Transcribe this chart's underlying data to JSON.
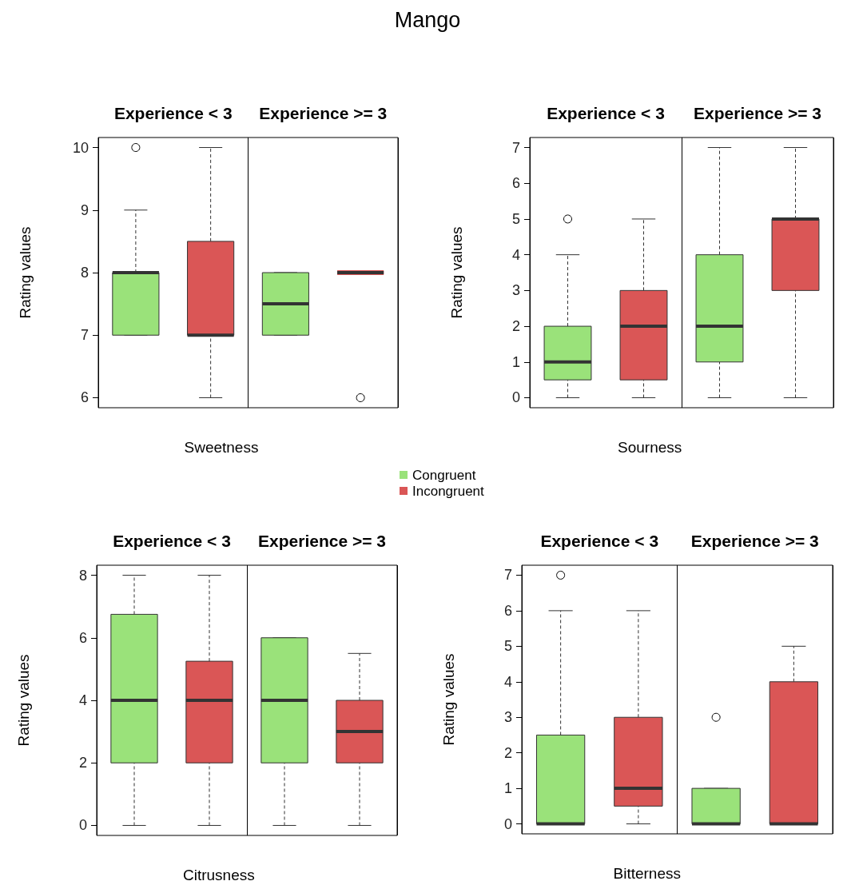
{
  "chart_data": [
    {
      "type": "other",
      "title": "Mango"
    },
    {
      "type": "box",
      "ylabel": "Rating values",
      "xlabel": "Sweetness",
      "categories": [
        "Experience < 3",
        "Experience >= 3"
      ],
      "ylim": [
        5.84,
        10.16
      ],
      "yticks": [
        6,
        7,
        8,
        9,
        10
      ],
      "legend": "bottom right",
      "series": [
        {
          "name": "Congruent",
          "color": "#9ae27a",
          "boxes": [
            {
              "low": 7,
              "q1": 7,
              "median": 8,
              "q3": 8,
              "high": 9,
              "outliers": [
                10
              ]
            },
            {
              "low": 7,
              "q1": 7,
              "median": 7.5,
              "q3": 8,
              "high": 8
            }
          ]
        },
        {
          "name": "Incongruent",
          "color": "#da5656",
          "boxes": [
            {
              "low": 6,
              "q1": 7,
              "median": 7,
              "q3": 8.5,
              "high": 10
            },
            {
              "low": 8,
              "q1": 8,
              "median": 8,
              "q3": 8,
              "high": 8,
              "outliers": [
                6
              ]
            }
          ]
        }
      ]
    },
    {
      "type": "box",
      "ylabel": "Rating values",
      "xlabel": "Sourness",
      "categories": [
        "Experience < 3",
        "Experience >= 3"
      ],
      "ylim": [
        -0.28,
        7.28
      ],
      "yticks": [
        0,
        1,
        2,
        3,
        4,
        5,
        6,
        7
      ],
      "series": [
        {
          "color": "#9ae27a",
          "boxes": [
            {
              "low": 0,
              "q1": 0.5,
              "median": 1,
              "q3": 2,
              "high": 4,
              "outliers": [
                5
              ]
            },
            {
              "low": 0,
              "q1": 1,
              "median": 2,
              "q3": 4,
              "high": 7
            }
          ]
        },
        {
          "color": "#da5656",
          "boxes": [
            {
              "low": 0,
              "q1": 0.5,
              "median": 2,
              "q3": 3,
              "high": 5
            },
            {
              "low": 0,
              "q1": 3,
              "median": 5,
              "q3": 5,
              "high": 7
            }
          ]
        }
      ]
    },
    {
      "type": "box",
      "ylabel": "Rating values",
      "xlabel": "Citrusness",
      "categories": [
        "Experience < 3",
        "Experience >= 3"
      ],
      "ylim": [
        -0.32,
        8.32
      ],
      "yticks": [
        0,
        2,
        4,
        6,
        8
      ],
      "series": [
        {
          "color": "#9ae27a",
          "boxes": [
            {
              "low": 0,
              "q1": 2,
              "median": 4,
              "q3": 6.75,
              "high": 8
            },
            {
              "low": 0,
              "q1": 2,
              "median": 4,
              "q3": 6,
              "high": 6
            }
          ]
        },
        {
          "color": "#da5656",
          "boxes": [
            {
              "low": 0,
              "q1": 2,
              "median": 4,
              "q3": 5.25,
              "high": 8
            },
            {
              "low": 0,
              "q1": 2,
              "median": 3,
              "q3": 4,
              "high": 5.5
            }
          ]
        }
      ]
    },
    {
      "type": "box",
      "ylabel": "Rating values",
      "xlabel": "Bitterness",
      "categories": [
        "Experience < 3",
        "Experience >= 3"
      ],
      "ylim": [
        -0.28,
        7.28
      ],
      "yticks": [
        0,
        1,
        2,
        3,
        4,
        5,
        6,
        7
      ],
      "series": [
        {
          "color": "#9ae27a",
          "boxes": [
            {
              "low": 0,
              "q1": 0,
              "median": 0,
              "q3": 2.5,
              "high": 6,
              "outliers": [
                7
              ]
            },
            {
              "low": 0,
              "q1": 0,
              "median": 0,
              "q3": 1,
              "high": 1,
              "outliers": [
                3
              ]
            }
          ]
        },
        {
          "color": "#da5656",
          "boxes": [
            {
              "low": 0,
              "q1": 0.5,
              "median": 1,
              "q3": 3,
              "high": 6
            },
            {
              "low": 0,
              "q1": 0,
              "median": 0,
              "q3": 4,
              "high": 5
            }
          ]
        }
      ]
    }
  ]
}
